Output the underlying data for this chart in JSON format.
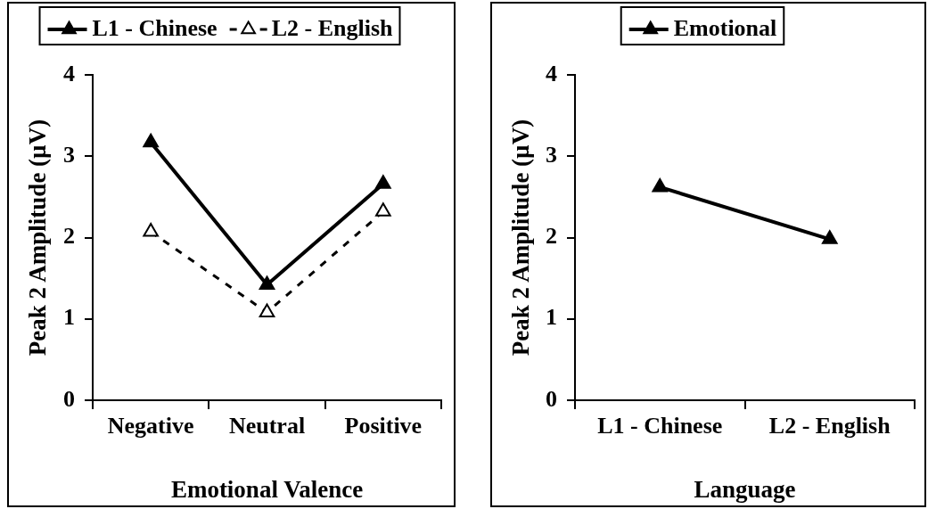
{
  "chart_data": [
    {
      "type": "line",
      "categories": [
        "Negative",
        "Neutral",
        "Positive"
      ],
      "xlabel": "Emotional Valence",
      "ylabel": "Peak 2 Amplitude (µV)",
      "ylim": [
        0,
        4
      ],
      "yticks": [
        0,
        1,
        2,
        3,
        4
      ],
      "legend": "top",
      "marker": "triangle",
      "series": [
        {
          "name": "L1 - Chinese",
          "color": "#000000",
          "line_style": "solid",
          "values": [
            3.17,
            1.42,
            2.66
          ]
        },
        {
          "name": "L2 - English",
          "color": "#000000",
          "line_style": "dashed",
          "values": [
            2.07,
            1.08,
            2.32
          ]
        }
      ]
    },
    {
      "type": "line",
      "categories": [
        "L1 - Chinese",
        "L2 - English"
      ],
      "xlabel": "Language",
      "ylabel": "Peak 2 Amplitude (µV)",
      "ylim": [
        0,
        4
      ],
      "yticks": [
        0,
        1,
        2,
        3,
        4
      ],
      "legend": "top",
      "marker": "triangle",
      "series": [
        {
          "name": "Emotional",
          "color": "#000000",
          "line_style": "solid",
          "values": [
            2.62,
            1.98
          ]
        }
      ]
    }
  ]
}
